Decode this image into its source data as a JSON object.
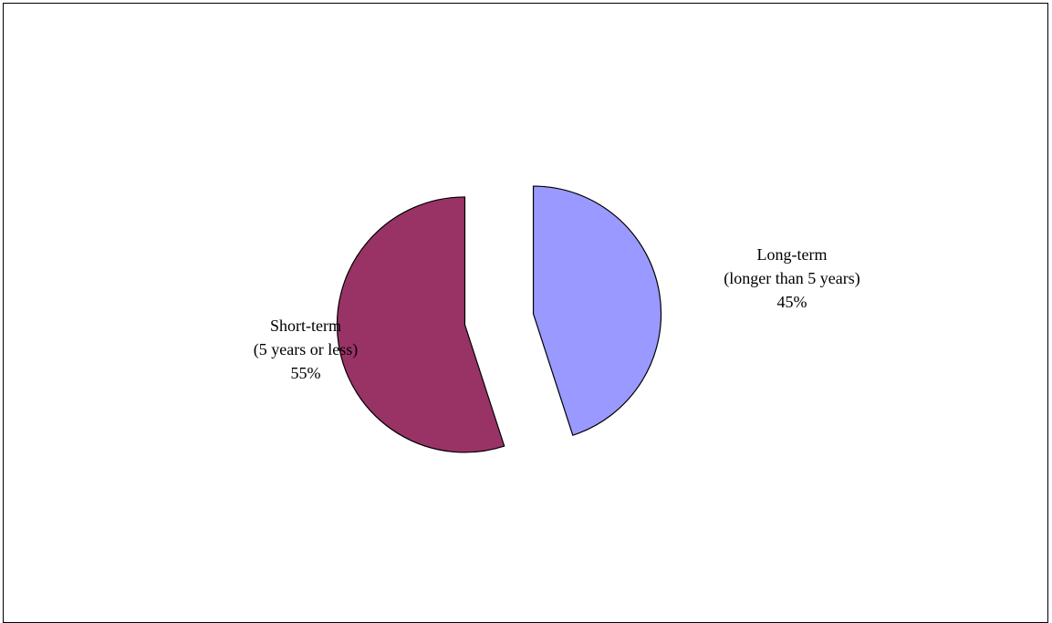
{
  "chart_data": {
    "type": "pie",
    "title": "",
    "exploded": true,
    "series": [
      {
        "categories": [
          "Long-term (longer than 5 years)",
          "Short-term (5 years or less)"
        ],
        "values": [
          45,
          55
        ]
      }
    ],
    "slices": [
      {
        "name": "Long-term",
        "detail": "(longer than 5 years)",
        "value": 45,
        "label_pct": "45%",
        "color": "#9999ff"
      },
      {
        "name": "Short-term",
        "detail": "(5 years or less)",
        "value": 55,
        "label_pct": "55%",
        "color": "#993366"
      }
    ]
  }
}
